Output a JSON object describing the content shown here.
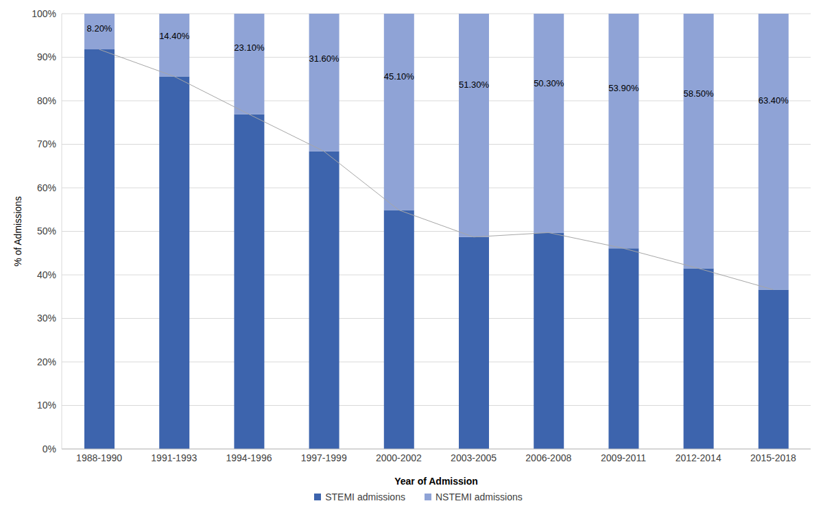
{
  "chart_data": {
    "type": "bar",
    "stacked": true,
    "grid": true,
    "legend": "bottom",
    "x_label": "Year of Admission",
    "y_label": "% of Admissions",
    "categories": [
      "1988-1990",
      "1991-1993",
      "1994-1996",
      "1997-1999",
      "2000-2002",
      "2003-2005",
      "2006-2008",
      "2009-2011",
      "2012-2014",
      "2015-2018"
    ],
    "series": [
      {
        "name": "STEMI admissions",
        "color": "#3d64ad",
        "line_style": "solid",
        "values": [
          91.8,
          85.6,
          76.9,
          68.4,
          54.9,
          48.7,
          49.7,
          46.1,
          41.5,
          36.6
        ]
      },
      {
        "name": "NSTEMI admissions",
        "color": "#8fa3d6",
        "data_labels": true,
        "values": [
          8.2,
          14.4,
          23.1,
          31.6,
          45.1,
          51.3,
          50.3,
          53.9,
          58.5,
          63.4
        ],
        "value_labels": [
          "8.20%",
          "14.40%",
          "23.10%",
          "31.60%",
          "45.10%",
          "51.30%",
          "50.30%",
          "53.90%",
          "58.50%",
          "63.40%"
        ]
      }
    ],
    "ylim": [
      0,
      100
    ],
    "yticks": [
      {
        "value": 0,
        "label": "0%"
      },
      {
        "value": 10,
        "label": "10%"
      },
      {
        "value": 20,
        "label": "20%"
      },
      {
        "value": 30,
        "label": "30%"
      },
      {
        "value": 40,
        "label": "40%"
      },
      {
        "value": 50,
        "label": "50%"
      },
      {
        "value": 60,
        "label": "60%"
      },
      {
        "value": 70,
        "label": "70%"
      },
      {
        "value": 80,
        "label": "80%"
      },
      {
        "value": 90,
        "label": "90%"
      },
      {
        "value": 100,
        "label": "100%"
      }
    ]
  }
}
